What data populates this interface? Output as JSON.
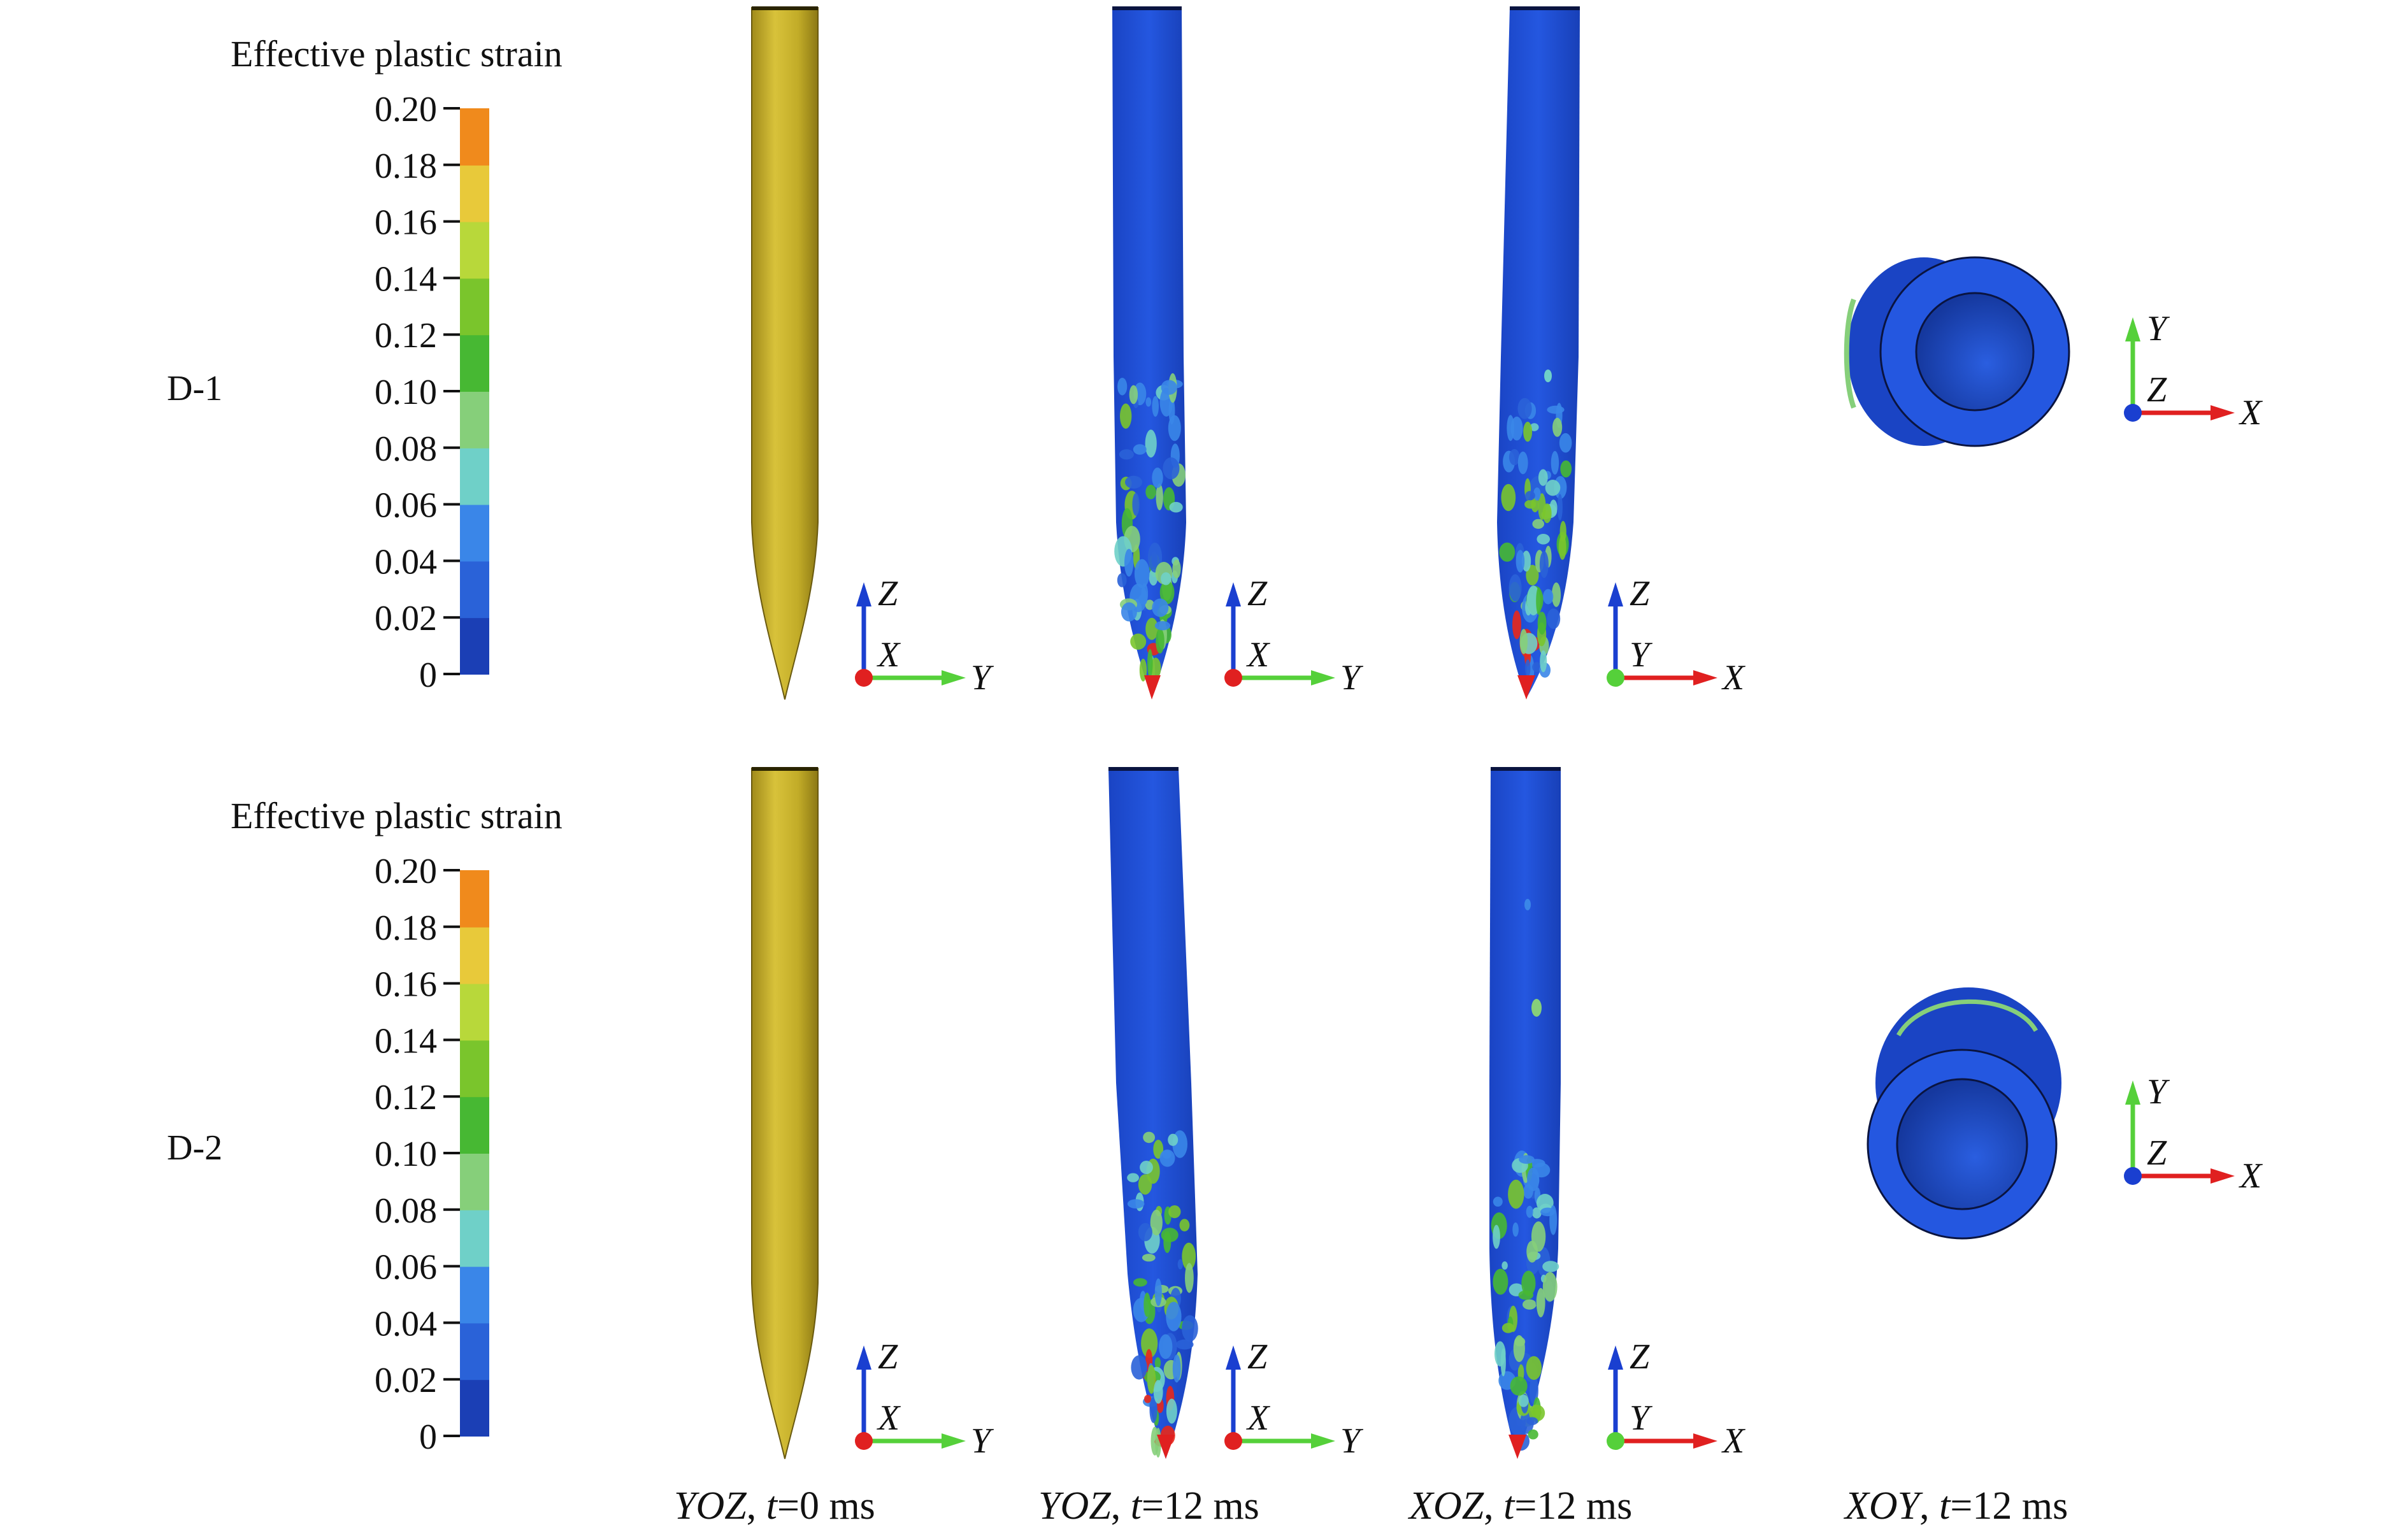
{
  "legend_title": "Effective plastic strain",
  "legend_ticks": [
    "0.20",
    "0.18",
    "0.16",
    "0.14",
    "0.12",
    "0.10",
    "0.08",
    "0.06",
    "0.04",
    "0.02",
    "0"
  ],
  "legend_colors": [
    "#1b3fb5",
    "#2a62d8",
    "#3a86e8",
    "#6fd0c8",
    "#86cf7a",
    "#47b833",
    "#7ac52c",
    "#b8d83a",
    "#e8c93a",
    "#f08a1c",
    "#e8281a"
  ],
  "rows": [
    {
      "label": "D-1"
    },
    {
      "label": "D-2"
    }
  ],
  "axes": {
    "yoz": {
      "up": "Z",
      "out": "X",
      "right": "Y"
    },
    "xoz": {
      "up": "Z",
      "out": "Y",
      "right": "X"
    },
    "xoy": {
      "up": "Y",
      "out": "Z",
      "right": "X"
    }
  },
  "captions": {
    "col1": {
      "plane": "YOZ",
      "sep": ", ",
      "t": "t",
      "val": "=0 ms"
    },
    "col2": {
      "plane": "YOZ",
      "sep": ", ",
      "t": "t",
      "val": "=12 ms"
    },
    "col3": {
      "plane": "XOZ",
      "sep": ", ",
      "t": "t",
      "val": "=12 ms"
    },
    "col4": {
      "plane": "XOY",
      "sep": ", ",
      "t": "t",
      "val": "=12 ms"
    }
  },
  "colors": {
    "undeformed": "#c8b22a",
    "deformed": "#1e4fd6",
    "axis_blue": "#1a3fd0",
    "axis_green": "#55d03a",
    "axis_red": "#e02020"
  }
}
